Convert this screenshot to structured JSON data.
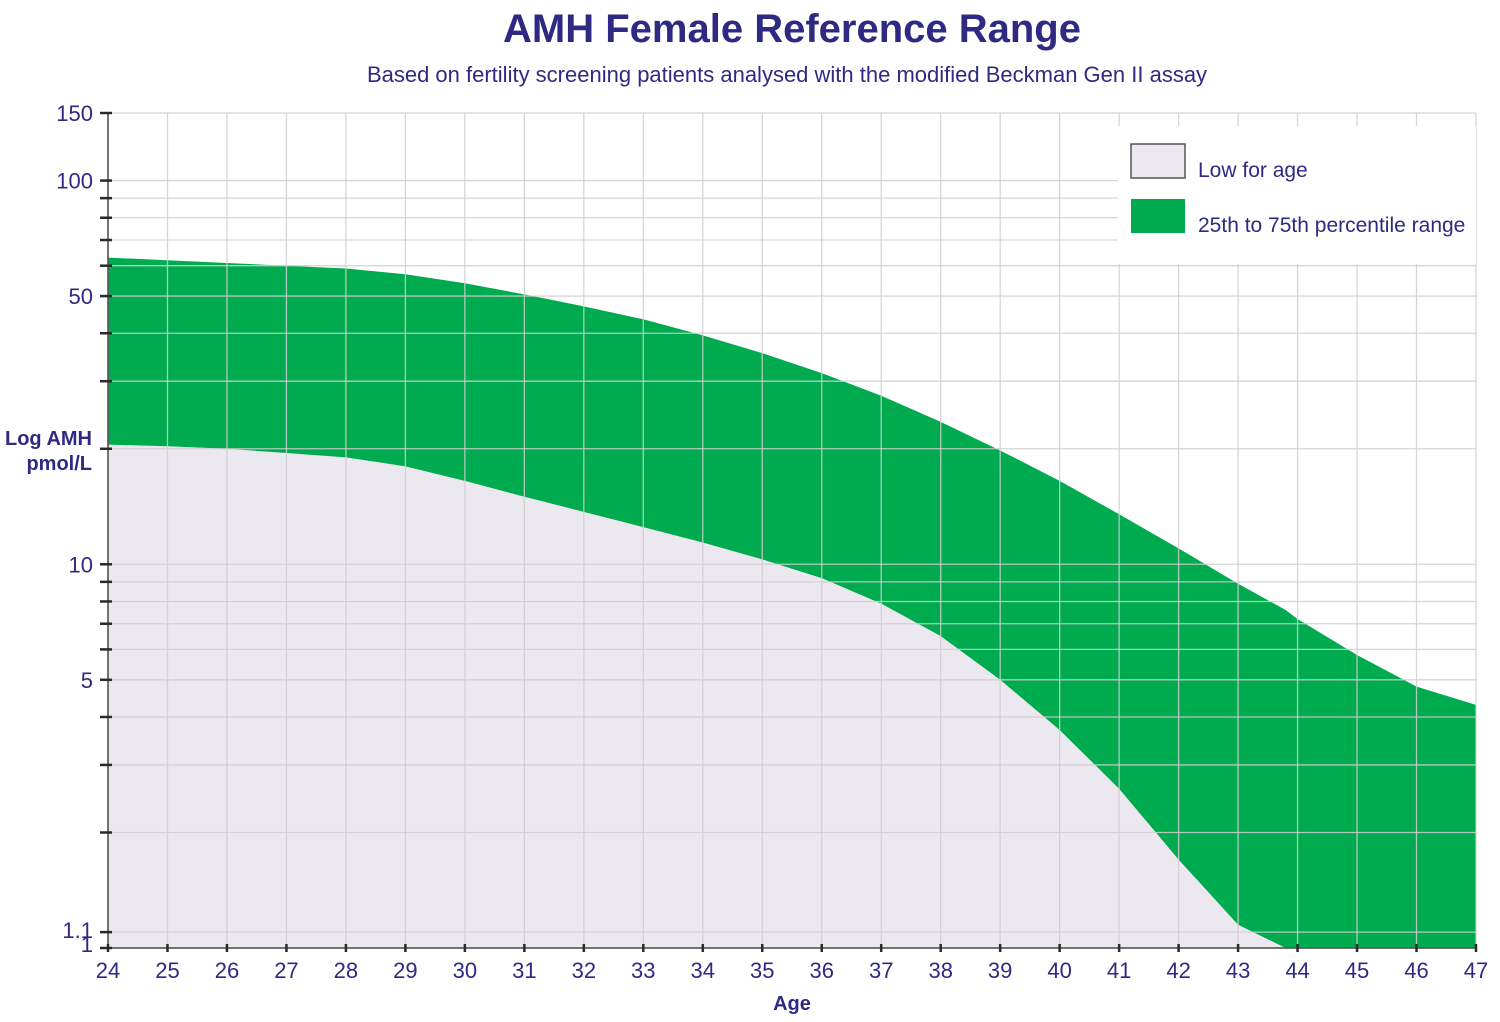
{
  "chart_data": {
    "type": "area",
    "title": "AMH Female Reference Range",
    "subtitle": "Based on fertility screening patients analysed with the modified Beckman Gen II assay",
    "xlabel": "Age",
    "ylabel_lines": [
      "Log AMH",
      "pmol/L"
    ],
    "x_ticks": [
      24,
      25,
      26,
      27,
      28,
      29,
      30,
      31,
      32,
      33,
      34,
      35,
      36,
      37,
      38,
      39,
      40,
      41,
      42,
      43,
      44,
      45,
      46,
      47
    ],
    "y_scale": "log",
    "ylim": [
      1,
      150
    ],
    "xlim": [
      24,
      47
    ],
    "y_tick_labels": [
      {
        "value": 1,
        "label": "1"
      },
      {
        "value": 1.1,
        "label": "1.1"
      },
      {
        "value": 5,
        "label": "5"
      },
      {
        "value": 10,
        "label": "10"
      },
      {
        "value": 50,
        "label": "50"
      },
      {
        "value": 100,
        "label": "100"
      },
      {
        "value": 150,
        "label": "150"
      }
    ],
    "y_minor_ticks": [
      2,
      3,
      4,
      6,
      7,
      8,
      9,
      20,
      30,
      40,
      60,
      70,
      80,
      90
    ],
    "grid": true,
    "legend_position": "top-right",
    "x": [
      24,
      25,
      26,
      27,
      28,
      29,
      30,
      31,
      32,
      33,
      34,
      35,
      36,
      37,
      38,
      39,
      40,
      41,
      42,
      43,
      43.8,
      44,
      45,
      46,
      47
    ],
    "series": [
      {
        "name": "Low for age",
        "color": "#ebe8ef",
        "values": [
          20.5,
          20.3,
          20.0,
          19.5,
          19.0,
          18.0,
          16.5,
          15.0,
          13.7,
          12.5,
          11.4,
          10.3,
          9.2,
          7.9,
          6.5,
          5.0,
          3.7,
          2.6,
          1.7,
          1.15,
          1.0,
          1.0,
          1.0,
          1.0,
          1.0
        ]
      },
      {
        "name": "25th to 75th percentile range",
        "color": "#00ab4f",
        "values": [
          63,
          62,
          61,
          60,
          59,
          57,
          54,
          50.5,
          47,
          43.5,
          39.5,
          35.5,
          31.5,
          27.5,
          23.5,
          19.8,
          16.5,
          13.5,
          11.0,
          8.9,
          7.6,
          7.2,
          5.8,
          4.8,
          4.3
        ]
      }
    ],
    "text_color": "#2e2a83"
  }
}
